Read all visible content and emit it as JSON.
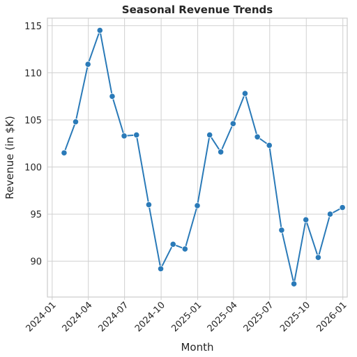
{
  "chart_data": {
    "type": "line",
    "title": "Seasonal Revenue Trends",
    "xlabel": "Month",
    "ylabel": "Revenue (in $K)",
    "x_ticks": [
      "2024-01",
      "2024-04",
      "2024-07",
      "2024-10",
      "2025-01",
      "2025-04",
      "2025-07",
      "2025-10",
      "2026-01"
    ],
    "y_ticks": [
      90,
      95,
      100,
      105,
      110,
      115
    ],
    "xlim": [
      "2023-12-20",
      "2026-01-12"
    ],
    "ylim": [
      86.2,
      115.8
    ],
    "grid": true,
    "line_color": "#2a7ab8",
    "series": [
      {
        "x": [
          "2024-01-31",
          "2024-02-29",
          "2024-03-31",
          "2024-04-30",
          "2024-05-31",
          "2024-06-30",
          "2024-07-31",
          "2024-08-31",
          "2024-09-30",
          "2024-10-31",
          "2024-11-30",
          "2024-12-31",
          "2025-01-31",
          "2025-02-28",
          "2025-03-31",
          "2025-04-30",
          "2025-05-31",
          "2025-06-30",
          "2025-07-31",
          "2025-08-31",
          "2025-09-30",
          "2025-10-31",
          "2025-11-30",
          "2025-12-31"
        ],
        "values": [
          101.5,
          104.8,
          110.9,
          114.5,
          107.5,
          103.3,
          103.4,
          96.0,
          89.2,
          91.8,
          91.3,
          95.9,
          103.4,
          101.6,
          104.6,
          107.8,
          103.2,
          102.3,
          93.3,
          87.6,
          94.4,
          90.4,
          95.0,
          95.7
        ]
      }
    ]
  }
}
